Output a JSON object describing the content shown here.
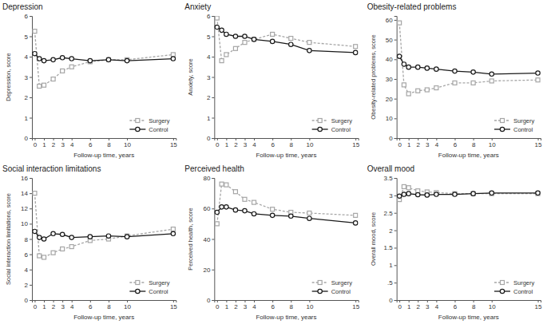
{
  "chart_data": [
    {
      "type": "line",
      "title": "Depression",
      "x_label": "Follow-up time, years",
      "y_label": "Depression, score",
      "x": [
        0,
        0.5,
        1,
        2,
        3,
        4,
        6,
        8,
        10,
        15
      ],
      "xlim": [
        -0.3,
        15.3
      ],
      "xticks": [
        0,
        1,
        2,
        3,
        4,
        6,
        8,
        10,
        15
      ],
      "ylim": [
        0,
        6
      ],
      "yticks": [
        0,
        1,
        2,
        3,
        4,
        5,
        6
      ],
      "grid": false,
      "legend": "lower right",
      "series": [
        {
          "name": "Surgery",
          "color": "#a6a6a6",
          "marker": "square",
          "line_style": "dashed",
          "values": [
            5.25,
            2.55,
            2.6,
            2.9,
            3.3,
            3.5,
            3.75,
            3.85,
            3.85,
            4.1
          ]
        },
        {
          "name": "Control",
          "color": "#1a1a1a",
          "marker": "circle",
          "line_style": "solid",
          "values": [
            4.15,
            3.9,
            3.8,
            3.85,
            3.95,
            3.9,
            3.8,
            3.85,
            3.8,
            3.9
          ]
        }
      ]
    },
    {
      "type": "line",
      "title": "Anxiety",
      "x_label": "Follow-up time, years",
      "y_label": "Anxiety, score",
      "x": [
        0,
        0.5,
        1,
        2,
        3,
        4,
        6,
        8,
        10,
        15
      ],
      "xlim": [
        -0.3,
        15.3
      ],
      "xticks": [
        0,
        1,
        2,
        3,
        4,
        6,
        8,
        10,
        15
      ],
      "ylim": [
        0,
        6
      ],
      "yticks": [
        0,
        1,
        2,
        3,
        4,
        5,
        6
      ],
      "grid": false,
      "legend": "lower right",
      "series": [
        {
          "name": "Surgery",
          "color": "#a6a6a6",
          "marker": "square",
          "line_style": "dashed",
          "values": [
            5.9,
            3.8,
            4.1,
            4.4,
            4.7,
            4.85,
            5.1,
            4.9,
            4.7,
            4.5
          ]
        },
        {
          "name": "Control",
          "color": "#1a1a1a",
          "marker": "circle",
          "line_style": "solid",
          "values": [
            5.45,
            5.3,
            5.1,
            5.0,
            5.0,
            4.85,
            4.75,
            4.6,
            4.3,
            4.2
          ]
        }
      ]
    },
    {
      "type": "line",
      "title": "Obesity-related problems",
      "x_label": "Follow-up time, years",
      "y_label": "Obesity-related problems, score",
      "x": [
        0,
        0.5,
        1,
        2,
        3,
        4,
        6,
        8,
        10,
        15
      ],
      "xlim": [
        -0.3,
        15.3
      ],
      "xticks": [
        0,
        1,
        2,
        3,
        4,
        6,
        8,
        10,
        15
      ],
      "ylim": [
        0,
        62
      ],
      "yticks": [
        0,
        10,
        20,
        30,
        40,
        50,
        60
      ],
      "grid": false,
      "legend": "lower right",
      "series": [
        {
          "name": "Surgery",
          "color": "#a6a6a6",
          "marker": "square",
          "line_style": "dashed",
          "values": [
            58.5,
            27,
            22.5,
            24,
            24.5,
            25.5,
            28,
            28,
            29,
            29.5
          ]
        },
        {
          "name": "Control",
          "color": "#1a1a1a",
          "marker": "circle",
          "line_style": "solid",
          "values": [
            41.5,
            37.5,
            36,
            36,
            35.5,
            35,
            34,
            33.5,
            32.5,
            33
          ]
        }
      ]
    },
    {
      "type": "line",
      "title": "Social interaction limitations",
      "x_label": "Follow-up time, years",
      "y_label": "Social interaction limitations, score",
      "x": [
        0,
        0.5,
        1,
        2,
        3,
        4,
        6,
        8,
        10,
        15
      ],
      "xlim": [
        -0.3,
        15.3
      ],
      "xticks": [
        0,
        1,
        2,
        3,
        4,
        6,
        8,
        10,
        15
      ],
      "ylim": [
        0,
        16
      ],
      "yticks": [
        0,
        2,
        4,
        6,
        8,
        10,
        12,
        14,
        16
      ],
      "grid": false,
      "legend": "lower right",
      "series": [
        {
          "name": "Surgery",
          "color": "#a6a6a6",
          "marker": "square",
          "line_style": "dashed",
          "values": [
            14,
            5.8,
            5.6,
            6.2,
            6.7,
            7.0,
            7.8,
            8.0,
            8.4,
            9.3
          ]
        },
        {
          "name": "Control",
          "color": "#1a1a1a",
          "marker": "circle",
          "line_style": "solid",
          "values": [
            9.0,
            8.2,
            8.0,
            8.7,
            8.6,
            8.2,
            8.3,
            8.4,
            8.3,
            8.7
          ]
        }
      ]
    },
    {
      "type": "line",
      "title": "Perceived health",
      "x_label": "Follow-up time, years",
      "y_label": "Perceived health, score",
      "x": [
        0,
        0.5,
        1,
        2,
        3,
        4,
        6,
        8,
        10,
        15
      ],
      "xlim": [
        -0.3,
        15.3
      ],
      "xticks": [
        0,
        1,
        2,
        3,
        4,
        6,
        8,
        10,
        15
      ],
      "ylim": [
        0,
        80
      ],
      "yticks": [
        0,
        20,
        40,
        60,
        80
      ],
      "grid": false,
      "legend": "lower right",
      "series": [
        {
          "name": "Surgery",
          "color": "#a6a6a6",
          "marker": "square",
          "line_style": "dashed",
          "values": [
            50,
            76,
            75.5,
            71,
            66,
            64,
            59.5,
            57.5,
            57,
            55.5
          ]
        },
        {
          "name": "Control",
          "color": "#1a1a1a",
          "marker": "circle",
          "line_style": "solid",
          "values": [
            57.5,
            61,
            61,
            59,
            58.5,
            56.5,
            55.5,
            55,
            53.5,
            50.5
          ]
        }
      ]
    },
    {
      "type": "line",
      "title": "Overall mood",
      "x_label": "Follow-up time, years",
      "y_label": "Overall mood, score",
      "x": [
        0,
        0.5,
        1,
        2,
        3,
        4,
        6,
        8,
        10,
        15
      ],
      "xlim": [
        -0.3,
        15.3
      ],
      "xticks": [
        0,
        1,
        2,
        3,
        4,
        6,
        8,
        10,
        15
      ],
      "ylim": [
        0,
        3.5
      ],
      "yticks": [
        0,
        {
          "value": 0.5,
          "label": ".5"
        },
        1,
        1.5,
        2,
        2.5,
        3,
        3.5
      ],
      "grid": false,
      "legend": "lower right",
      "series": [
        {
          "name": "Surgery",
          "color": "#a6a6a6",
          "marker": "square",
          "line_style": "dashed",
          "values": [
            2.88,
            3.25,
            3.22,
            3.13,
            3.1,
            3.08,
            3.05,
            3.05,
            3.05,
            3.05
          ]
        },
        {
          "name": "Control",
          "color": "#1a1a1a",
          "marker": "circle",
          "line_style": "solid",
          "values": [
            2.98,
            3.03,
            3.05,
            3.02,
            3.01,
            3.03,
            3.03,
            3.05,
            3.07,
            3.07
          ]
        }
      ]
    }
  ]
}
